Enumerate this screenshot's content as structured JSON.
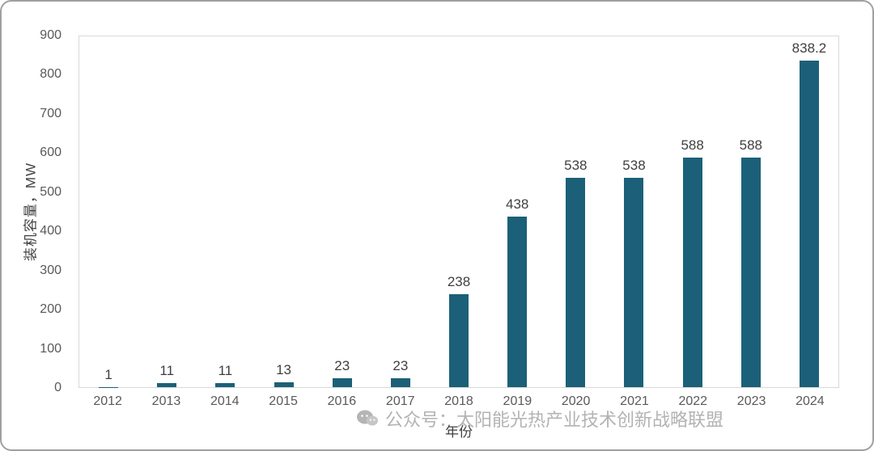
{
  "chart_data": {
    "type": "bar",
    "categories": [
      "2012",
      "2013",
      "2014",
      "2015",
      "2016",
      "2017",
      "2018",
      "2019",
      "2020",
      "2021",
      "2022",
      "2023",
      "2024"
    ],
    "values": [
      1,
      11,
      11,
      13,
      23,
      23,
      238,
      438,
      538,
      538,
      588,
      588,
      838.2
    ],
    "labels": [
      "1",
      "11",
      "11",
      "13",
      "23",
      "23",
      "238",
      "438",
      "538",
      "538",
      "588",
      "588",
      "838.2"
    ],
    "title": "",
    "xlabel": "年份",
    "ylabel": "装机容量，MW",
    "ylim": [
      0,
      900
    ],
    "yticks": [
      0,
      100,
      200,
      300,
      400,
      500,
      600,
      700,
      800,
      900
    ],
    "bar_color": "#1b6078",
    "grid": false,
    "legend": false
  },
  "watermark": {
    "text": "公众号：太阳能光热产业技术创新战略联盟",
    "icon": "wechat-icon"
  },
  "colors": {
    "bar": "#1b6078",
    "axis_text": "#595959",
    "value_label": "#404040",
    "watermark": "#b3b3b3",
    "border": "#a0a0a0"
  }
}
